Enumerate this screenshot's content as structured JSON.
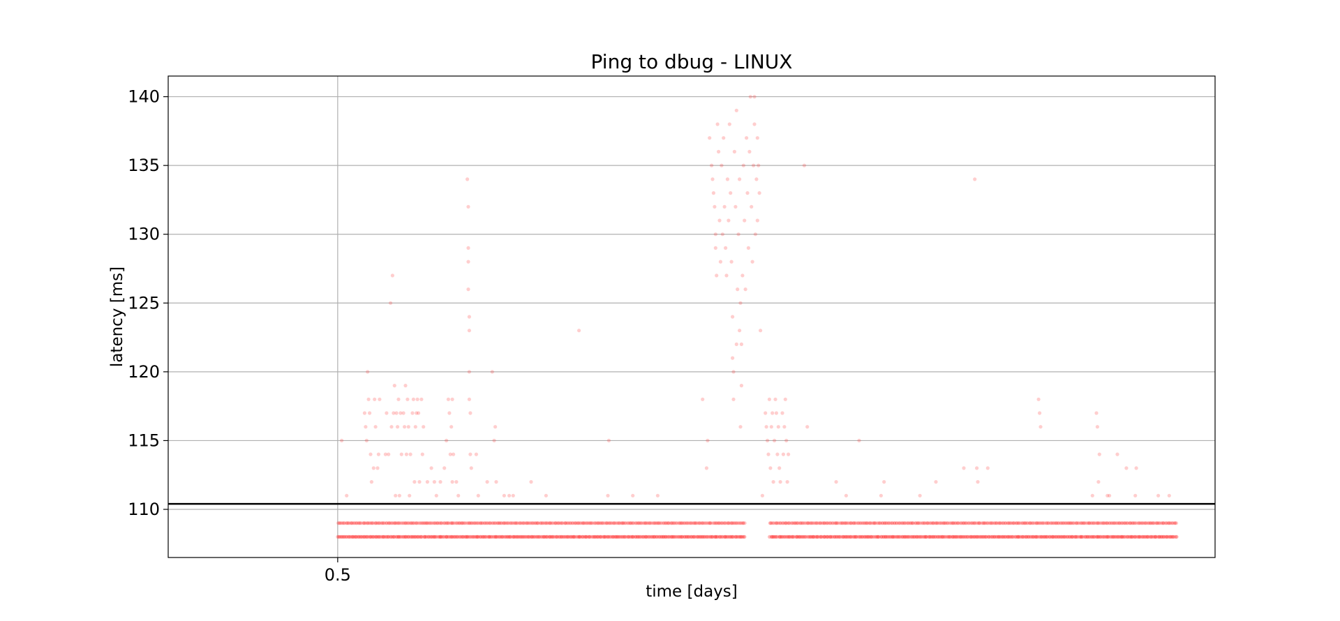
{
  "chart_data": {
    "type": "scatter",
    "title": "Ping to dbug - LINUX",
    "xlabel": "time [days]",
    "ylabel": "latency [ms]",
    "xlim": [
      0.483,
      0.588
    ],
    "ylim": [
      106.5,
      141.5
    ],
    "xticks": [
      0.5
    ],
    "xtick_labels": [
      "0.5"
    ],
    "yticks": [
      110,
      115,
      120,
      125,
      130,
      135,
      140
    ],
    "ytick_labels": [
      "110",
      "115",
      "120",
      "125",
      "130",
      "135",
      "140"
    ],
    "grid": true,
    "marker_color": "#ff2020",
    "reference_line": {
      "y": 110.4,
      "color": "#000000"
    },
    "series": [
      {
        "points": [
          [
            0.5004,
            115
          ],
          [
            0.5009,
            111
          ],
          [
            0.5027,
            117
          ],
          [
            0.5028,
            116
          ],
          [
            0.5029,
            115
          ],
          [
            0.503,
            120
          ],
          [
            0.5031,
            118
          ],
          [
            0.5032,
            117
          ],
          [
            0.5033,
            114
          ],
          [
            0.5034,
            112
          ],
          [
            0.5036,
            113
          ],
          [
            0.5037,
            118
          ],
          [
            0.5038,
            116
          ],
          [
            0.504,
            113
          ],
          [
            0.5041,
            114
          ],
          [
            0.5042,
            118
          ],
          [
            0.5048,
            114
          ],
          [
            0.5049,
            117
          ],
          [
            0.5051,
            114
          ],
          [
            0.5053,
            125
          ],
          [
            0.5054,
            116
          ],
          [
            0.5055,
            127
          ],
          [
            0.5056,
            117
          ],
          [
            0.5057,
            119
          ],
          [
            0.5058,
            111
          ],
          [
            0.5059,
            117
          ],
          [
            0.506,
            116
          ],
          [
            0.5061,
            118
          ],
          [
            0.5062,
            111
          ],
          [
            0.5063,
            117
          ],
          [
            0.5064,
            114
          ],
          [
            0.5066,
            117
          ],
          [
            0.5067,
            116
          ],
          [
            0.5068,
            119
          ],
          [
            0.5069,
            114
          ],
          [
            0.507,
            118
          ],
          [
            0.5071,
            116
          ],
          [
            0.5072,
            111
          ],
          [
            0.5073,
            114
          ],
          [
            0.5075,
            117
          ],
          [
            0.5076,
            118
          ],
          [
            0.5077,
            112
          ],
          [
            0.5078,
            116
          ],
          [
            0.5079,
            117
          ],
          [
            0.508,
            118
          ],
          [
            0.5081,
            117
          ],
          [
            0.5082,
            112
          ],
          [
            0.5084,
            118
          ],
          [
            0.5085,
            114
          ],
          [
            0.5086,
            116
          ],
          [
            0.509,
            112
          ],
          [
            0.5094,
            113
          ],
          [
            0.5097,
            112
          ],
          [
            0.5099,
            111
          ],
          [
            0.5103,
            112
          ],
          [
            0.5107,
            113
          ],
          [
            0.5109,
            115
          ],
          [
            0.5111,
            118
          ],
          [
            0.5112,
            117
          ],
          [
            0.5113,
            114
          ],
          [
            0.5114,
            116
          ],
          [
            0.5115,
            118
          ],
          [
            0.5115,
            112
          ],
          [
            0.5116,
            114
          ],
          [
            0.5119,
            112
          ],
          [
            0.5121,
            111
          ],
          [
            0.513,
            134
          ],
          [
            0.5131,
            132
          ],
          [
            0.5131,
            129
          ],
          [
            0.5131,
            128
          ],
          [
            0.5131,
            126
          ],
          [
            0.5132,
            124
          ],
          [
            0.5132,
            123
          ],
          [
            0.5132,
            120
          ],
          [
            0.5132,
            118
          ],
          [
            0.5133,
            117
          ],
          [
            0.5133,
            114
          ],
          [
            0.5134,
            113
          ],
          [
            0.5141,
            111
          ],
          [
            0.5139,
            114
          ],
          [
            0.515,
            112
          ],
          [
            0.5155,
            120
          ],
          [
            0.5157,
            115
          ],
          [
            0.5158,
            116
          ],
          [
            0.5159,
            112
          ],
          [
            0.5167,
            111
          ],
          [
            0.5172,
            111
          ],
          [
            0.5176,
            111
          ],
          [
            0.5194,
            112
          ],
          [
            0.5209,
            111
          ],
          [
            0.5242,
            123
          ],
          [
            0.5272,
            115
          ],
          [
            0.5271,
            111
          ],
          [
            0.5296,
            111
          ],
          [
            0.5321,
            111
          ],
          [
            0.537,
            113
          ],
          [
            0.5366,
            118
          ],
          [
            0.5371,
            115
          ],
          [
            0.5373,
            137
          ],
          [
            0.5375,
            135
          ],
          [
            0.5376,
            134
          ],
          [
            0.5377,
            133
          ],
          [
            0.5378,
            132
          ],
          [
            0.5379,
            130
          ],
          [
            0.5379,
            129
          ],
          [
            0.538,
            127
          ],
          [
            0.5381,
            138
          ],
          [
            0.5382,
            136
          ],
          [
            0.5383,
            131
          ],
          [
            0.5384,
            128
          ],
          [
            0.5385,
            135
          ],
          [
            0.5386,
            130
          ],
          [
            0.5387,
            137
          ],
          [
            0.5388,
            132
          ],
          [
            0.5389,
            129
          ],
          [
            0.539,
            127
          ],
          [
            0.5391,
            134
          ],
          [
            0.5392,
            131
          ],
          [
            0.5393,
            138
          ],
          [
            0.5394,
            133
          ],
          [
            0.5395,
            128
          ],
          [
            0.5396,
            124
          ],
          [
            0.5396,
            121
          ],
          [
            0.5397,
            120
          ],
          [
            0.5397,
            118
          ],
          [
            0.5398,
            136
          ],
          [
            0.5399,
            132
          ],
          [
            0.54,
            139
          ],
          [
            0.54,
            122
          ],
          [
            0.5401,
            126
          ],
          [
            0.5402,
            130
          ],
          [
            0.5403,
            134
          ],
          [
            0.5403,
            123
          ],
          [
            0.5404,
            125
          ],
          [
            0.5404,
            116
          ],
          [
            0.5405,
            122
          ],
          [
            0.5405,
            119
          ],
          [
            0.5406,
            127
          ],
          [
            0.5407,
            135
          ],
          [
            0.5408,
            131
          ],
          [
            0.5409,
            126
          ],
          [
            0.541,
            137
          ],
          [
            0.5411,
            133
          ],
          [
            0.5412,
            129
          ],
          [
            0.5413,
            136
          ],
          [
            0.5414,
            140
          ],
          [
            0.5415,
            132
          ],
          [
            0.5416,
            128
          ],
          [
            0.5417,
            135
          ],
          [
            0.5418,
            140
          ],
          [
            0.5418,
            138
          ],
          [
            0.5419,
            130
          ],
          [
            0.542,
            134
          ],
          [
            0.5421,
            137
          ],
          [
            0.5421,
            131
          ],
          [
            0.5422,
            135
          ],
          [
            0.5423,
            133
          ],
          [
            0.5424,
            123
          ],
          [
            0.5426,
            111
          ],
          [
            0.5429,
            117
          ],
          [
            0.543,
            116
          ],
          [
            0.5431,
            115
          ],
          [
            0.5432,
            114
          ],
          [
            0.5433,
            118
          ],
          [
            0.5434,
            113
          ],
          [
            0.5435,
            116
          ],
          [
            0.5436,
            117
          ],
          [
            0.5437,
            112
          ],
          [
            0.5438,
            115
          ],
          [
            0.5439,
            118
          ],
          [
            0.544,
            117
          ],
          [
            0.5441,
            114
          ],
          [
            0.5442,
            116
          ],
          [
            0.5443,
            113
          ],
          [
            0.5444,
            112
          ],
          [
            0.5446,
            117
          ],
          [
            0.5447,
            114
          ],
          [
            0.5448,
            116
          ],
          [
            0.5449,
            118
          ],
          [
            0.545,
            115
          ],
          [
            0.5451,
            112
          ],
          [
            0.5452,
            114
          ],
          [
            0.5468,
            135
          ],
          [
            0.5471,
            116
          ],
          [
            0.55,
            112
          ],
          [
            0.551,
            111
          ],
          [
            0.5523,
            115
          ],
          [
            0.5545,
            111
          ],
          [
            0.5548,
            112
          ],
          [
            0.5584,
            111
          ],
          [
            0.56,
            112
          ],
          [
            0.5628,
            113
          ],
          [
            0.5639,
            134
          ],
          [
            0.5641,
            113
          ],
          [
            0.5642,
            112
          ],
          [
            0.5652,
            113
          ],
          [
            0.5703,
            118
          ],
          [
            0.5704,
            117
          ],
          [
            0.5705,
            116
          ],
          [
            0.5757,
            111
          ],
          [
            0.5761,
            117
          ],
          [
            0.5762,
            116
          ],
          [
            0.5763,
            112
          ],
          [
            0.5764,
            114
          ],
          [
            0.5772,
            111
          ],
          [
            0.5774,
            111
          ],
          [
            0.5782,
            114
          ],
          [
            0.5791,
            113
          ],
          [
            0.58,
            111
          ],
          [
            0.5801,
            113
          ],
          [
            0.5823,
            111
          ],
          [
            0.5834,
            111
          ]
        ],
        "baseline_ranges": [
          {
            "y": 109,
            "from": 0.5,
            "to": 0.5409
          },
          {
            "y": 108,
            "from": 0.5,
            "to": 0.5409
          },
          {
            "y": 109,
            "from": 0.5433,
            "to": 0.5842
          },
          {
            "y": 108,
            "from": 0.5433,
            "to": 0.5842
          }
        ]
      }
    ]
  }
}
